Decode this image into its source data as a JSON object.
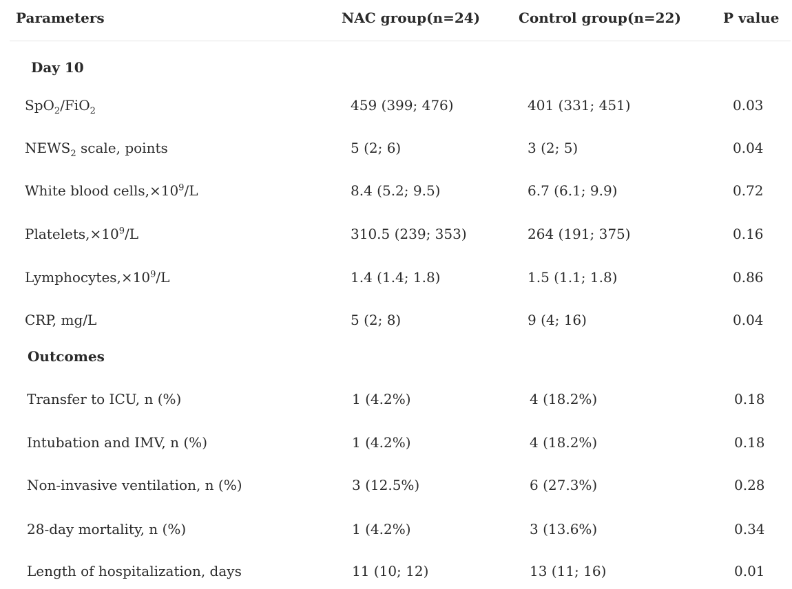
{
  "table": {
    "headers": {
      "parameters": "Parameters",
      "nac": "NAC group(n=24)",
      "control": "Control group(n=22)",
      "pvalue": "P value"
    },
    "sections": {
      "day10": "Day 10",
      "outcomes": "Outcomes"
    },
    "rows": [
      {
        "param_main": "SpO",
        "param_sub1": "2",
        "param_mid": "/FiO",
        "param_sub2": "2",
        "nac": "459 (399; 476)",
        "control": "401 (331; 451)",
        "p": "0.03"
      },
      {
        "param_main": "NEWS",
        "param_sub": "2",
        "param_rest": " scale, points",
        "nac": "5 (2; 6)",
        "control": "3 (2; 5)",
        "p": "0.04"
      },
      {
        "param_main": "White blood cells,×10",
        "param_sup": "9",
        "param_rest": "/L",
        "nac": "8.4 (5.2; 9.5)",
        "control": "6.7 (6.1; 9.9)",
        "p": "0.72"
      },
      {
        "param_main": "Platelets,×10",
        "param_sup": "9",
        "param_rest": "/L",
        "nac": "310.5 (239; 353)",
        "control": "264 (191; 375)",
        "p": "0.16"
      },
      {
        "param_main": "Lymphocytes,×10",
        "param_sup": "9",
        "param_rest": "/L",
        "nac": "1.4 (1.4; 1.8)",
        "control": "1.5 (1.1; 1.8)",
        "p": "0.86"
      },
      {
        "param": "CRP, mg/L",
        "nac": "5 (2; 8)",
        "control": "9 (4; 16)",
        "p": "0.04"
      },
      {
        "param": "Transfer to ICU, n (%)",
        "nac": "1 (4.2%)",
        "control": "4 (18.2%)",
        "p": "0.18"
      },
      {
        "param": "Intubation and IMV, n (%)",
        "nac": "1 (4.2%)",
        "control": "4 (18.2%)",
        "p": "0.18"
      },
      {
        "param": "Non-invasive ventilation, n (%)",
        "nac": "3 (12.5%)",
        "control": "6 (27.3%)",
        "p": "0.28"
      },
      {
        "param": "28-day mortality, n (%)",
        "nac": "1 (4.2%)",
        "control": "3 (13.6%)",
        "p": "0.34"
      },
      {
        "param": "Length of hospitalization, days",
        "nac": "11 (10; 12)",
        "control": "13 (11; 16)",
        "p": "0.01"
      }
    ]
  }
}
